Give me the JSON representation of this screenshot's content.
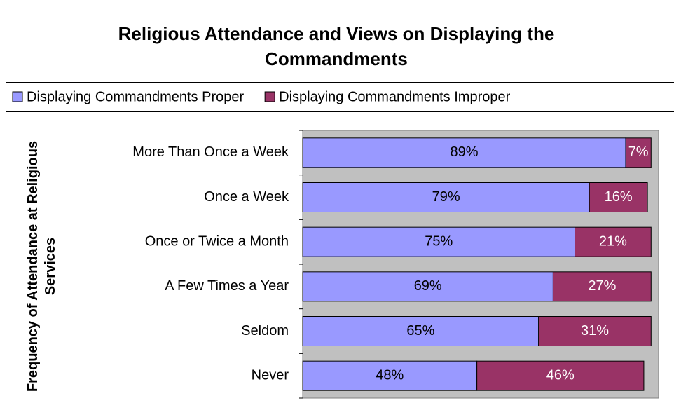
{
  "chart_data": {
    "type": "stacked_barh",
    "title": "Religious Attendance and Views on Displaying the Commandments",
    "y_label": "Frequency of Attendance at Religious Services",
    "categories": [
      "More Than Once a Week",
      "Once a Week",
      "Once or Twice a Month",
      "A Few Times a Year",
      "Seldom",
      "Never"
    ],
    "series": [
      {
        "name": "Displaying Commandments Proper",
        "color": "#9999ff",
        "values": [
          89,
          79,
          75,
          69,
          65,
          48
        ],
        "value_labels": [
          "89%",
          "79%",
          "75%",
          "69%",
          "65%",
          "48%"
        ]
      },
      {
        "name": "Displaying Commandments Improper",
        "color": "#993366",
        "values": [
          7,
          16,
          21,
          27,
          31,
          46
        ],
        "value_labels": [
          "7%",
          "16%",
          "21%",
          "27%",
          "31%",
          "46%"
        ]
      }
    ],
    "xlim": [
      0,
      100
    ]
  }
}
